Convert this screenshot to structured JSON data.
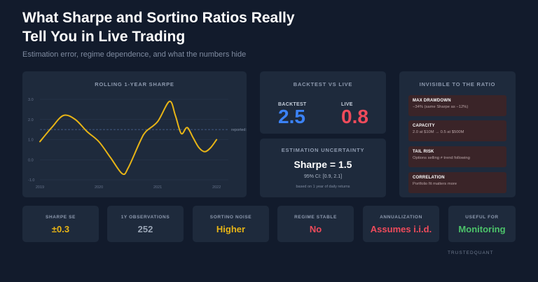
{
  "header": {
    "title": "What Sharpe and Sortino Ratios Really Tell You in Live Trading",
    "subtitle": "Estimation error, regime dependence, and what the numbers hide"
  },
  "rolling": {
    "title": "ROLLING 1-YEAR SHARPE",
    "reported_label": "reported: 1.5"
  },
  "chart_data": {
    "type": "line",
    "title": "ROLLING 1-YEAR SHARPE",
    "x_ticks": [
      "2019",
      "2020",
      "2021",
      "2022"
    ],
    "y_ticks": [
      "3.0",
      "2.0",
      "1.0",
      "0.0",
      "-1.0"
    ],
    "ylim": [
      -1.0,
      3.0
    ],
    "xlim": [
      2019,
      2022.2
    ],
    "grid": "horizontal",
    "reference_line": {
      "value": 1.5,
      "label": "reported: 1.5"
    },
    "series": [
      {
        "color": "#e7b416",
        "x": [
          2019.0,
          2019.2,
          2019.4,
          2019.6,
          2019.8,
          2020.0,
          2020.2,
          2020.4,
          2020.5,
          2020.7,
          2020.8,
          2021.0,
          2021.2,
          2021.3,
          2021.4,
          2021.5,
          2021.6,
          2021.7,
          2021.8,
          2021.9,
          2022.0
        ],
        "y": [
          0.9,
          1.6,
          2.2,
          2.0,
          1.4,
          0.9,
          0.1,
          -0.7,
          -0.4,
          0.9,
          1.4,
          1.9,
          2.9,
          2.2,
          1.3,
          1.6,
          1.1,
          0.6,
          0.4,
          0.6,
          1.0
        ]
      }
    ]
  },
  "bvl": {
    "title": "BACKTEST vs LIVE",
    "backtest_label": "BACKTEST",
    "backtest_value": "2.5",
    "live_label": "LIVE",
    "live_value": "0.8"
  },
  "estimation": {
    "title": "ESTIMATION UNCERTAINTY",
    "main": "Sharpe = 1.5",
    "ci": "95% CI: [0.9, 2.1]",
    "note": "based on 1 year of daily returns"
  },
  "invisible": {
    "title": "INVISIBLE TO THE RATIO",
    "items": [
      {
        "title": "MAX DRAWDOWN",
        "desc": "−34% (same Sharpe as −12%)"
      },
      {
        "title": "CAPACITY",
        "desc": "2.0 at $10M → 0.5 at $500M"
      },
      {
        "title": "TAIL RISK",
        "desc": "Options selling ≠ trend following"
      },
      {
        "title": "CORRELATION",
        "desc": "Portfolio fit matters more"
      }
    ]
  },
  "stats": [
    {
      "label": "SHARPE SE",
      "value": "±0.3",
      "color": "#e7b416"
    },
    {
      "label": "1Y OBSERVATIONS",
      "value": "252",
      "color": "#9aa5b5"
    },
    {
      "label": "SORTINO NOISE",
      "value": "Higher",
      "color": "#e7b416"
    },
    {
      "label": "REGIME STABLE",
      "value": "No",
      "color": "#ef4b5b"
    },
    {
      "label": "ANNUALIZATION",
      "value": "Assumes i.i.d.",
      "color": "#ef4b5b"
    },
    {
      "label": "USEFUL FOR",
      "value": "Monitoring",
      "color": "#4cc36a"
    }
  ],
  "colors": {
    "backtest": "#3b82f6",
    "live": "#ef4b5b"
  },
  "brand": "TRUSTEDQUANT"
}
